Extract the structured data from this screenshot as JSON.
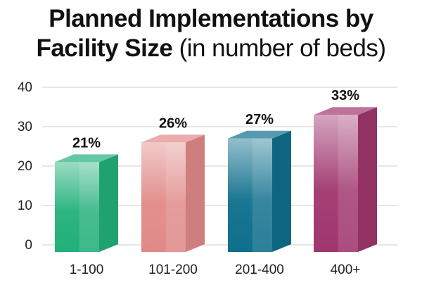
{
  "title": {
    "line1": "Planned Implementations by",
    "line2_bold": "Facility Size",
    "line2_light": "(in number of beds)"
  },
  "chart_data": {
    "type": "bar",
    "style": "3d",
    "title": "Planned Implementations by Facility Size (in number of beds)",
    "xlabel": "",
    "ylabel": "",
    "ylim": [
      0,
      40
    ],
    "yticks": [
      0,
      10,
      20,
      30,
      40
    ],
    "grid": true,
    "categories": [
      "1-100",
      "101-200",
      "201-400",
      "400+"
    ],
    "values": [
      21,
      26,
      27,
      33
    ],
    "data_labels": [
      "21%",
      "26%",
      "27%",
      "33%"
    ],
    "colors": [
      "#22b07a",
      "#e08a88",
      "#0f6f8c",
      "#a0366e"
    ]
  }
}
